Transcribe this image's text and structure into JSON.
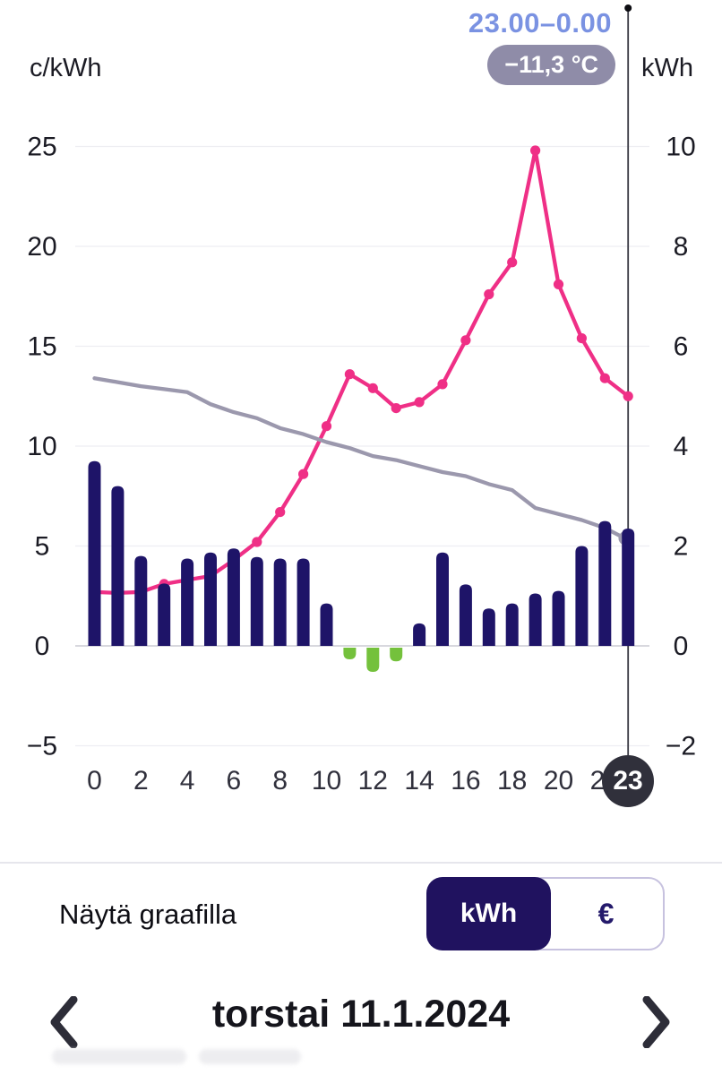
{
  "header": {
    "selected_range": "23.00–0.00",
    "temperature": "−11,3 °C"
  },
  "chart_data": {
    "type": "bar",
    "title": "",
    "x_hours": [
      0,
      1,
      2,
      3,
      4,
      5,
      6,
      7,
      8,
      9,
      10,
      11,
      12,
      13,
      14,
      15,
      16,
      17,
      18,
      19,
      20,
      21,
      22,
      23
    ],
    "x_tick_hours": [
      0,
      2,
      4,
      6,
      8,
      10,
      12,
      14,
      16,
      18,
      20,
      22
    ],
    "x_tick_labels": [
      "0",
      "2",
      "4",
      "6",
      "8",
      "10",
      "12",
      "14",
      "16",
      "18",
      "20",
      "22"
    ],
    "left_axis": {
      "unit": "c/kWh",
      "tick_values": [
        25,
        20,
        15,
        10,
        5,
        0,
        -5
      ],
      "tick_labels": [
        "25",
        "20",
        "15",
        "10",
        "5",
        "0",
        "−5"
      ],
      "ylim": [
        -7.5,
        27.5
      ]
    },
    "right_axis": {
      "unit": "kWh",
      "tick_values": [
        10,
        8,
        6,
        4,
        2,
        0,
        -2
      ],
      "tick_labels": [
        "10",
        "8",
        "6",
        "4",
        "2",
        "0",
        "−2"
      ],
      "ylim": [
        -3,
        11
      ]
    },
    "grid": true,
    "legend": false,
    "series": [
      {
        "name": "price",
        "unit": "c/kWh",
        "type": "line",
        "axis": "left",
        "color": "#ef2f86",
        "marker": true,
        "values": [
          2.7,
          2.65,
          2.7,
          3.1,
          3.3,
          3.5,
          4.3,
          5.2,
          6.7,
          8.6,
          11.0,
          13.6,
          12.9,
          11.9,
          12.2,
          13.1,
          15.3,
          17.6,
          19.2,
          24.8,
          18.1,
          15.4,
          13.4,
          12.5
        ]
      },
      {
        "name": "average-price",
        "unit": "c/kWh",
        "type": "line",
        "axis": "left",
        "color": "#9b98ad",
        "marker": false,
        "end_ring": true,
        "values": [
          13.4,
          13.2,
          13.0,
          12.85,
          12.7,
          12.1,
          11.7,
          11.4,
          10.9,
          10.6,
          10.2,
          9.9,
          9.5,
          9.3,
          9.0,
          8.7,
          8.5,
          8.1,
          7.8,
          6.9,
          6.6,
          6.3,
          5.9,
          5.3
        ]
      },
      {
        "name": "consumption",
        "unit": "kWh",
        "type": "bar",
        "axis": "right",
        "color_positive": "#1e1468",
        "color_negative": "#74c13c",
        "values": [
          3.7,
          3.2,
          1.8,
          1.25,
          1.75,
          1.87,
          1.95,
          1.78,
          1.75,
          1.75,
          0.85,
          -0.27,
          -0.52,
          -0.31,
          0.45,
          1.87,
          1.23,
          0.75,
          0.85,
          1.05,
          1.1,
          2.0,
          2.5,
          2.35
        ]
      }
    ],
    "cursor": {
      "selected_hour": 23,
      "selected_hour_label": "23",
      "color": "#3b3b45"
    }
  },
  "toggle": {
    "label": "Näytä graafilla",
    "options": [
      {
        "label": "kWh",
        "selected": true
      },
      {
        "label": "€",
        "selected": false
      }
    ]
  },
  "date_nav": {
    "title": "torstai 11.1.2024"
  }
}
